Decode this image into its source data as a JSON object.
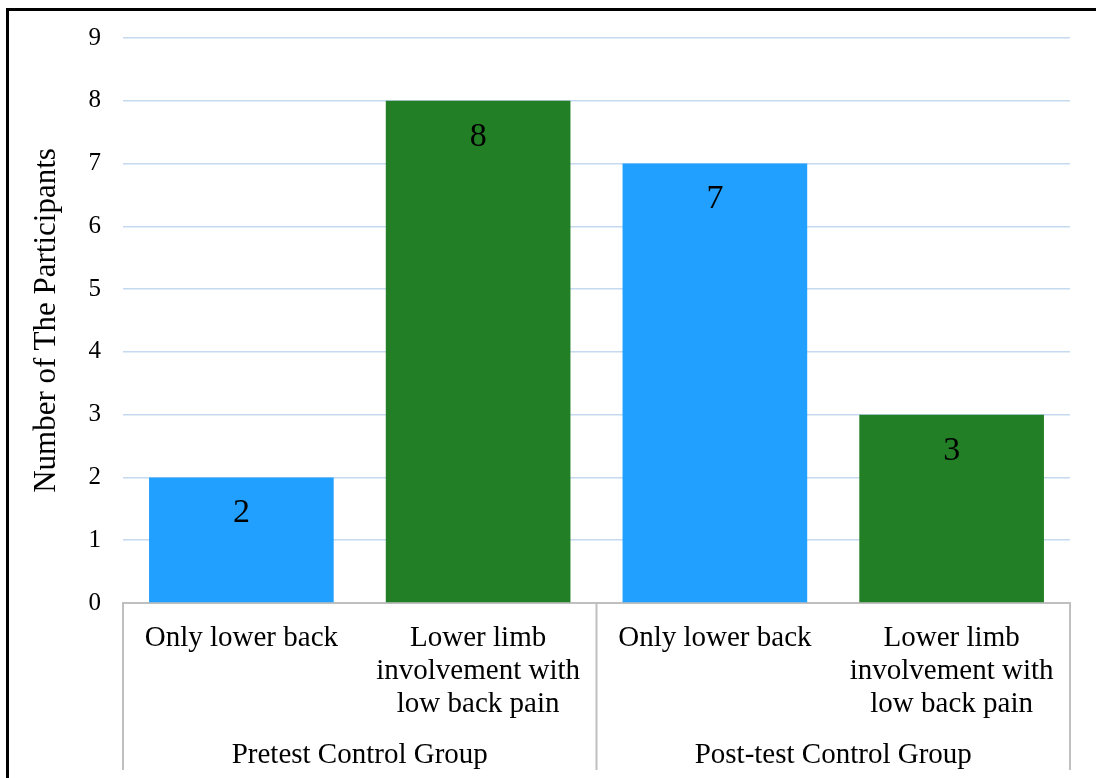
{
  "chart_data": {
    "type": "bar",
    "ylabel": "Number of The Participants",
    "categories": [
      "Only lower back",
      "Lower limb involvement with low back pain",
      "Only lower back",
      "Lower limb involvement with low back pain"
    ],
    "values": [
      2,
      8,
      7,
      3
    ],
    "colors": [
      "#22a0ff",
      "#237f25",
      "#22a0ff",
      "#237f25"
    ],
    "ylim": [
      0,
      9
    ],
    "yticks": [
      0,
      1,
      2,
      3,
      4,
      5,
      6,
      7,
      8,
      9
    ],
    "grid": "y",
    "data_labels": true,
    "annotations": [
      "Pretest Control Group",
      "Post-test Control Group"
    ]
  }
}
